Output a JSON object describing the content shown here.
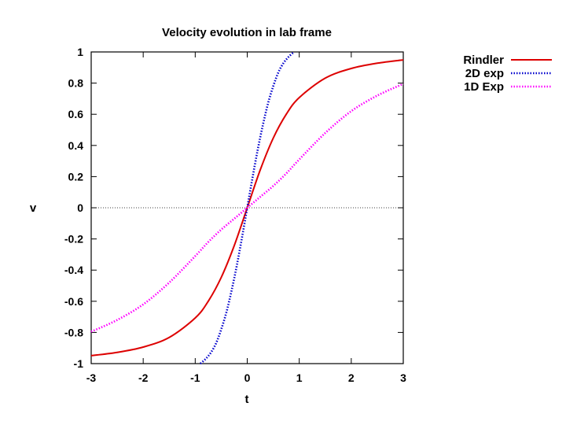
{
  "chart_data": {
    "type": "line",
    "title": "Velocity evolution in lab frame",
    "xlabel": "t",
    "ylabel": "v",
    "xlim": [
      -3,
      3
    ],
    "ylim": [
      -1,
      1
    ],
    "xticks": [
      "-3",
      "-2",
      "-1",
      "0",
      "1",
      "2",
      "3"
    ],
    "yticks": [
      "1",
      "0.8",
      "0.6",
      "0.4",
      "0.2",
      "0",
      "-0.2",
      "-0.4",
      "-0.6",
      "-0.8",
      "-1"
    ],
    "zero_line": true,
    "grid": false,
    "legend_position": "top-right, outside plot",
    "series": [
      {
        "name": "Rindler",
        "color": "#dd0000",
        "style": "solid",
        "x": [
          -3,
          -2.5,
          -2,
          -1.5,
          -1,
          -0.75,
          -0.5,
          -0.25,
          0,
          0.25,
          0.5,
          0.75,
          1,
          1.5,
          2,
          2.5,
          3
        ],
        "y": [
          -0.949,
          -0.928,
          -0.894,
          -0.832,
          -0.707,
          -0.6,
          -0.447,
          -0.243,
          0,
          0.243,
          0.447,
          0.6,
          0.707,
          0.832,
          0.894,
          0.928,
          0.949
        ]
      },
      {
        "name": "2D exp",
        "color": "#0000cc",
        "style": "dotted",
        "x": [
          -0.9,
          -0.8,
          -0.7,
          -0.6,
          -0.5,
          -0.4,
          -0.3,
          -0.2,
          -0.1,
          0,
          0.1,
          0.2,
          0.3,
          0.4,
          0.5,
          0.6,
          0.7,
          0.8,
          0.9
        ],
        "y": [
          -1.0,
          -0.97,
          -0.93,
          -0.87,
          -0.78,
          -0.67,
          -0.53,
          -0.37,
          -0.19,
          0,
          0.19,
          0.37,
          0.53,
          0.67,
          0.78,
          0.87,
          0.93,
          0.97,
          1.0
        ]
      },
      {
        "name": "1D Exp",
        "color": "#ff00ff",
        "style": "dotted",
        "x": [
          -3,
          -2.5,
          -2,
          -1.5,
          -1,
          -0.75,
          -0.5,
          -0.25,
          0,
          0.25,
          0.5,
          0.75,
          1,
          1.5,
          2,
          2.5,
          3
        ],
        "y": [
          -0.795,
          -0.72,
          -0.62,
          -0.48,
          -0.31,
          -0.22,
          -0.14,
          -0.07,
          0,
          0.07,
          0.14,
          0.22,
          0.31,
          0.48,
          0.62,
          0.72,
          0.795
        ]
      }
    ]
  }
}
